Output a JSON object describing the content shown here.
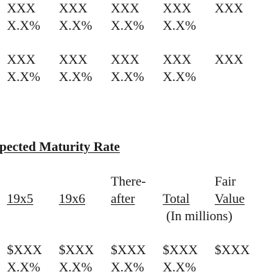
{
  "block_top": {
    "row1": [
      "XXX",
      "XXX",
      "XXX",
      "XXX",
      "XXX"
    ],
    "row2": [
      "X.X%",
      "X.X%",
      "X.X%",
      "X.X%"
    ]
  },
  "block_middle": {
    "row1": [
      "XXX",
      "XXX",
      "XXX",
      "XXX",
      "XXX"
    ],
    "row2": [
      "X.X%",
      "X.X%",
      "X.X%",
      "X.X%"
    ]
  },
  "section_heading": "pected Maturity Rate",
  "headers": {
    "col1": "19x5",
    "col2": "19x6",
    "col3_line1": "There-",
    "col3_line2": "after",
    "col4": "Total",
    "col5_line1": "Fair",
    "col5_line2": "Value",
    "units": "(In millions)"
  },
  "block_bottom": {
    "row1": [
      "$XXX",
      "$XXX",
      "$XXX",
      "$XXX",
      "$XXX"
    ],
    "row2": [
      "X.X%",
      "X.X%",
      "X.X%",
      "X.X%"
    ]
  }
}
